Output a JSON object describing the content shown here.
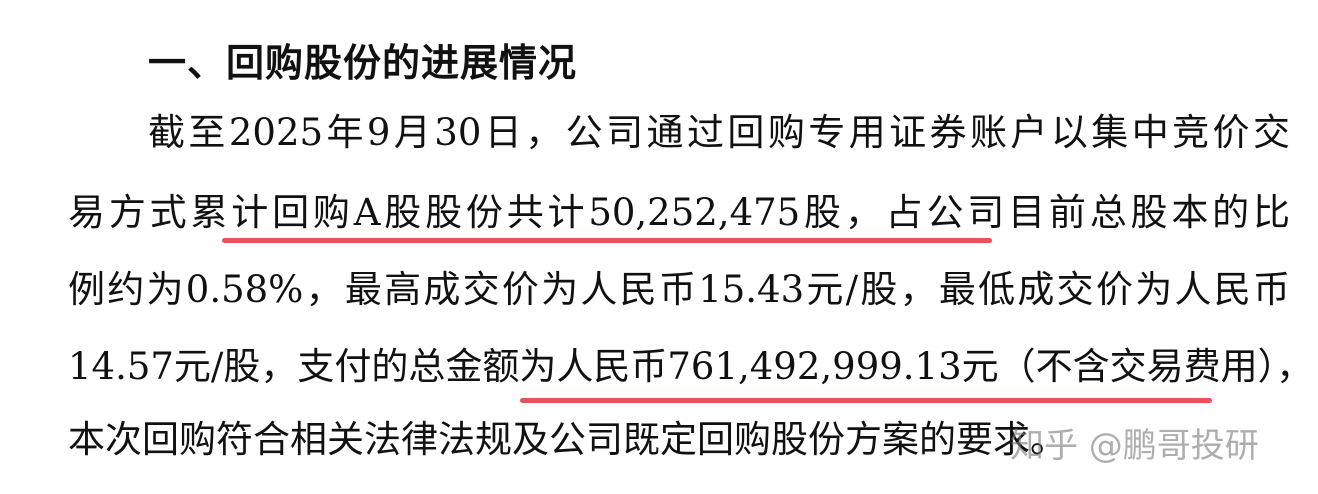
{
  "heading": "一、回购股份的进展情况",
  "paragraph_lines": [
    "截至2025年9月30日，公司通过回购专用证券账户以集中竞价交",
    "易方式累计回购A股股份共计50,252,475股，占公司目前总股本的比",
    "例约为0.58%，最高成交价为人民币15.43元/股，最低成交价为人民币",
    "14.57元/股，支付的总金额为人民币761,492,999.13元（不含交易费用），",
    "本次回购符合相关法律法规及公司既定回购股份方案的要求。"
  ],
  "highlight_color": "#ef4f5b",
  "watermark": "知乎 @鹏哥投研"
}
